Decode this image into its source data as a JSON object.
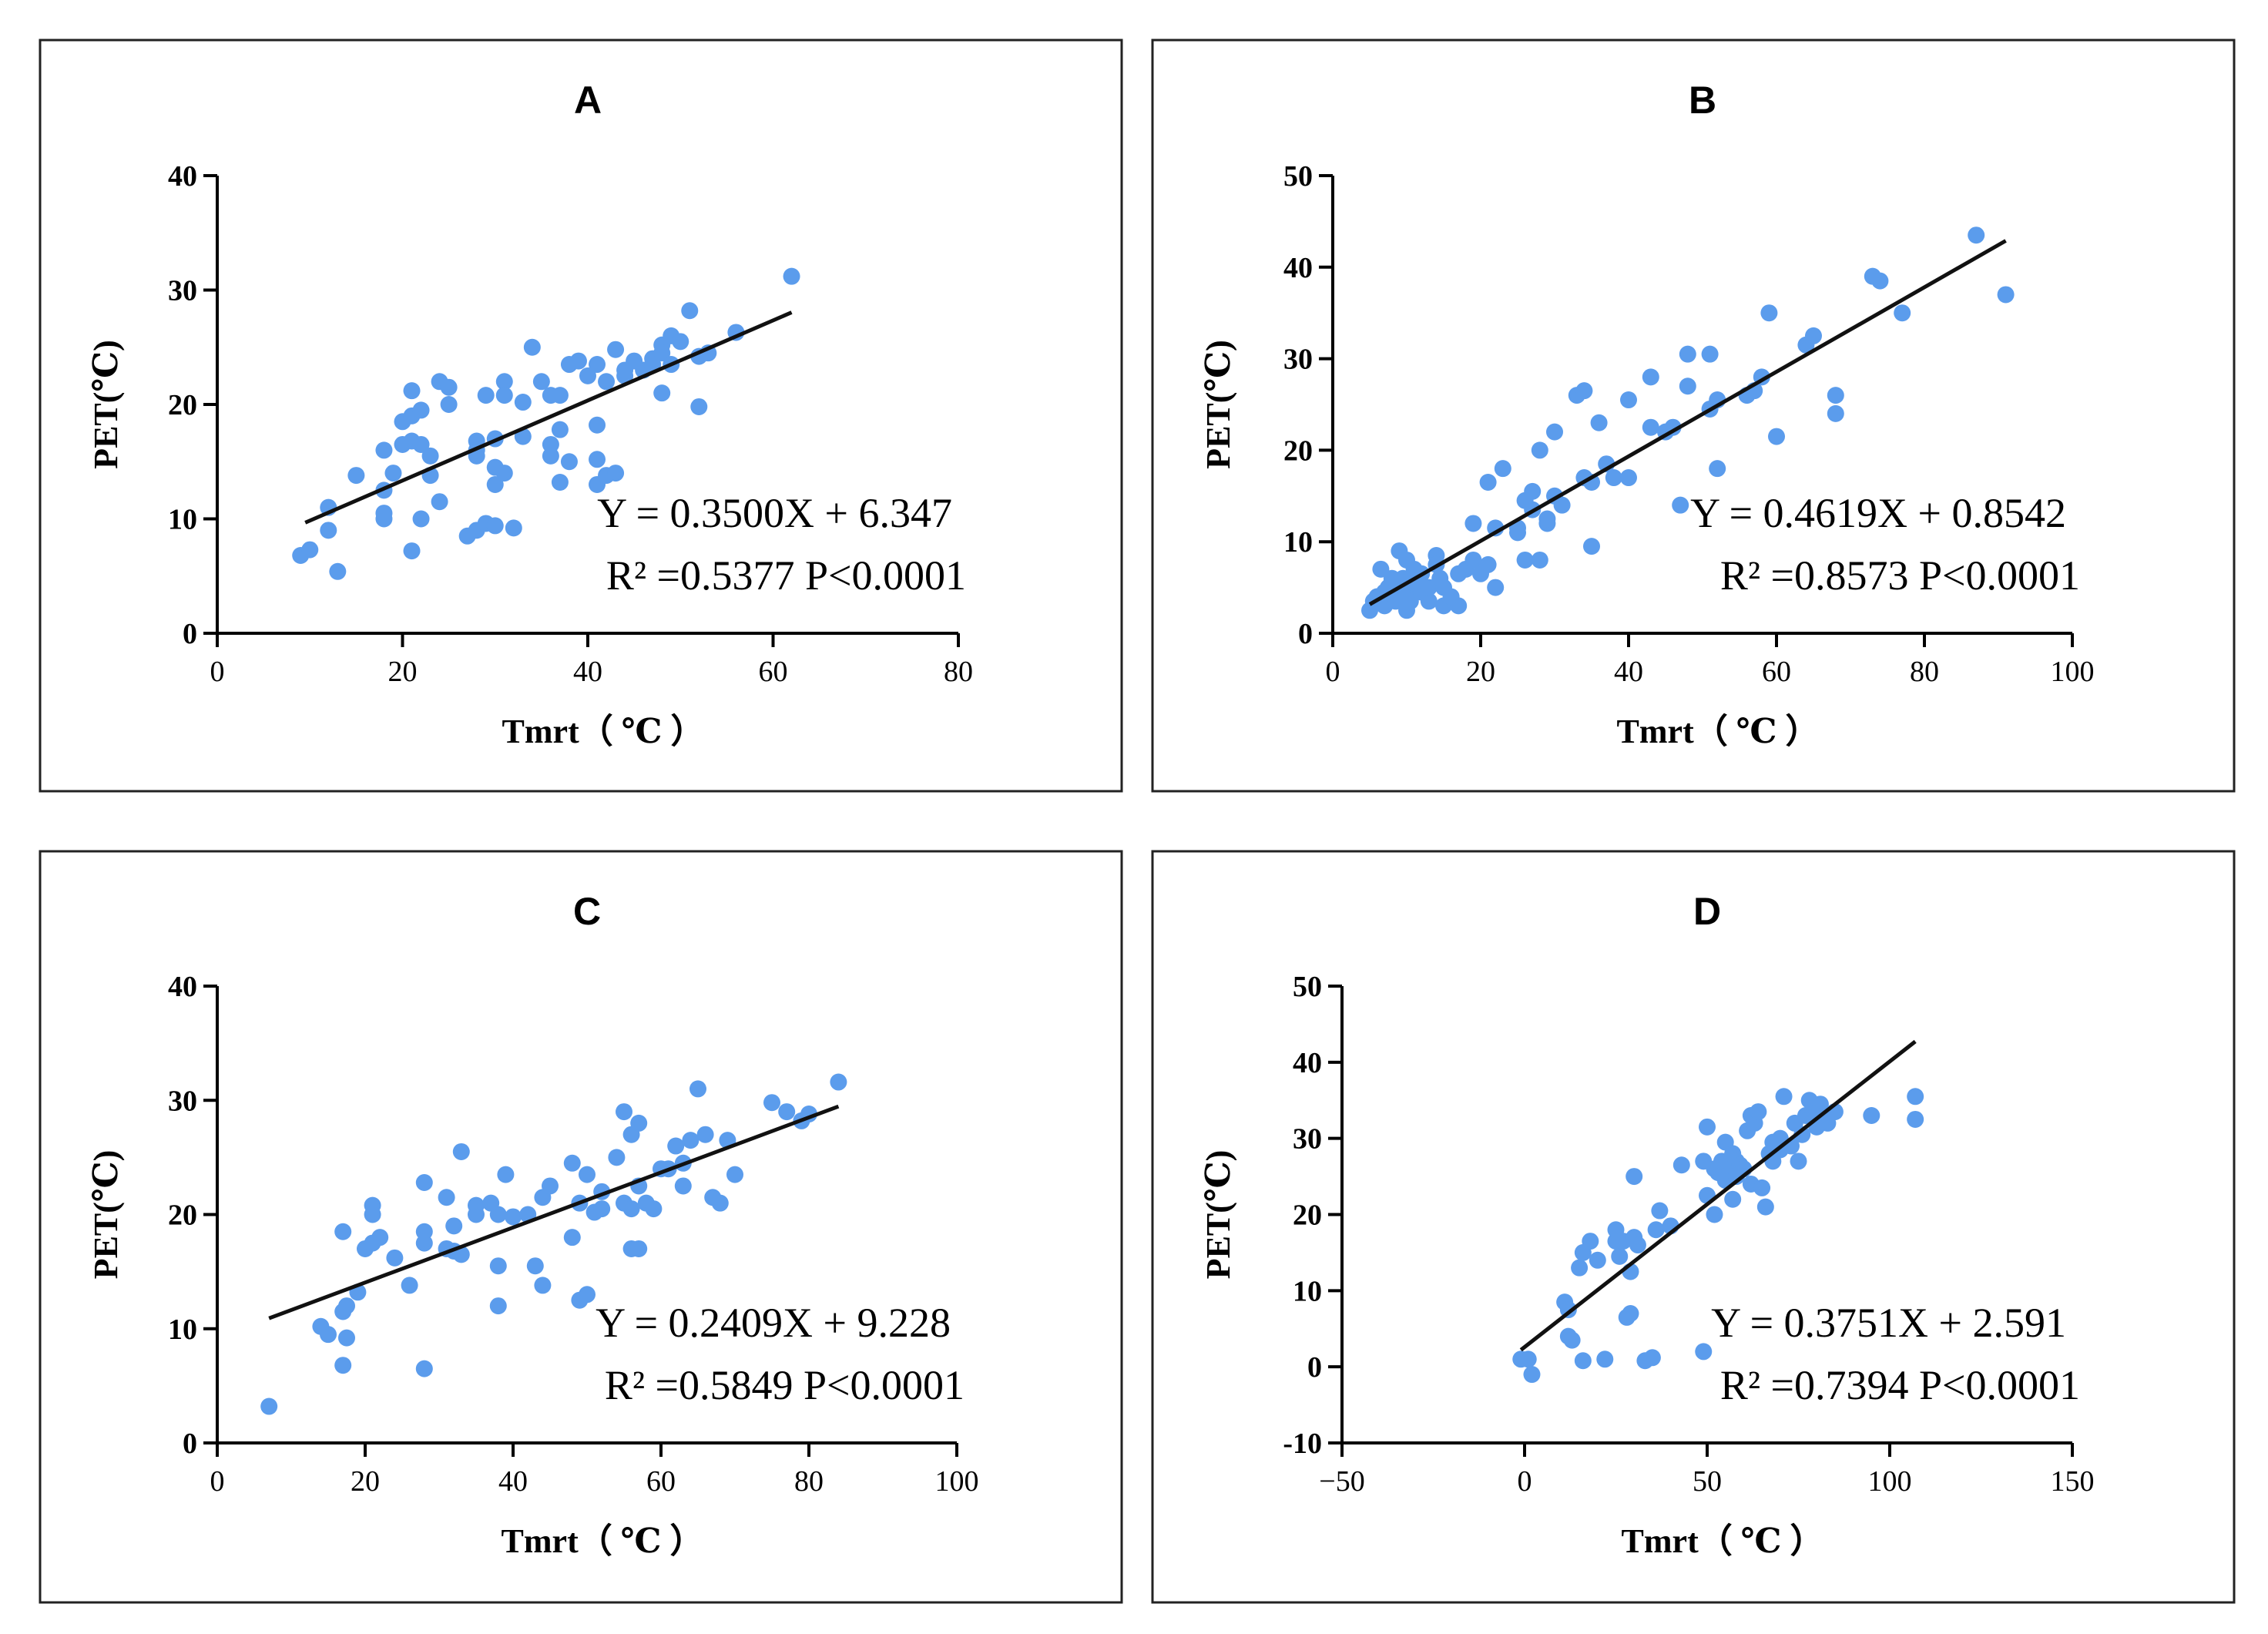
{
  "chart_data": [
    {
      "type": "scatter",
      "title": "A",
      "xlabel": "Tmrt（ ℃ ）",
      "ylabel": "PET(℃)",
      "xlim": [
        0,
        80
      ],
      "ylim": [
        0,
        40
      ],
      "xticks": [
        0,
        20,
        40,
        60,
        80
      ],
      "yticks": [
        0,
        10,
        20,
        30,
        40
      ],
      "point_color": "#5B9CEC",
      "equation": "Y = 0.3500X + 6.347",
      "stats": "R² =0.5377  P<0.0001",
      "fit": {
        "slope": 0.35,
        "intercept": 6.347,
        "x_range": [
          9.5,
          62
        ]
      },
      "points": [
        [
          9,
          6.8
        ],
        [
          10,
          7.3
        ],
        [
          12,
          9.0
        ],
        [
          12,
          11.0
        ],
        [
          13,
          5.4
        ],
        [
          15,
          13.8
        ],
        [
          18,
          10.0
        ],
        [
          18,
          10.5
        ],
        [
          18,
          12.5
        ],
        [
          18,
          16.0
        ],
        [
          19,
          14.0
        ],
        [
          20,
          16.5
        ],
        [
          20,
          18.5
        ],
        [
          21,
          7.2
        ],
        [
          21,
          19.0
        ],
        [
          21,
          16.8
        ],
        [
          21,
          21.2
        ],
        [
          22,
          10.0
        ],
        [
          22,
          19.5
        ],
        [
          22,
          16.5
        ],
        [
          23,
          13.8
        ],
        [
          23,
          15.5
        ],
        [
          24,
          22.0
        ],
        [
          24,
          11.5
        ],
        [
          25,
          21.5
        ],
        [
          25,
          20.0
        ],
        [
          27,
          8.5
        ],
        [
          28,
          16.8
        ],
        [
          28,
          15.5
        ],
        [
          28,
          16.0
        ],
        [
          28,
          9.0
        ],
        [
          29,
          9.6
        ],
        [
          29,
          20.8
        ],
        [
          30,
          9.4
        ],
        [
          30,
          17.0
        ],
        [
          30,
          13.0
        ],
        [
          30,
          14.5
        ],
        [
          31,
          14.0
        ],
        [
          31,
          22.0
        ],
        [
          31,
          20.8
        ],
        [
          32,
          9.2
        ],
        [
          33,
          17.2
        ],
        [
          33,
          20.2
        ],
        [
          34,
          25.0
        ],
        [
          35,
          22.0
        ],
        [
          36,
          16.5
        ],
        [
          36,
          15.5
        ],
        [
          36,
          20.8
        ],
        [
          37,
          13.2
        ],
        [
          37,
          17.8
        ],
        [
          37,
          20.8
        ],
        [
          38,
          23.5
        ],
        [
          38,
          15.0
        ],
        [
          39,
          23.8
        ],
        [
          40,
          22.5
        ],
        [
          41,
          13.0
        ],
        [
          41,
          18.2
        ],
        [
          41,
          15.2
        ],
        [
          41,
          23.5
        ],
        [
          42,
          22.0
        ],
        [
          42,
          13.8
        ],
        [
          43,
          14.0
        ],
        [
          43,
          24.8
        ],
        [
          44,
          22.5
        ],
        [
          44,
          23.0
        ],
        [
          45,
          23.8
        ],
        [
          46,
          23.0
        ],
        [
          47,
          24.0
        ],
        [
          47,
          23.5
        ],
        [
          48,
          25.2
        ],
        [
          48,
          24.5
        ],
        [
          48,
          21.0
        ],
        [
          49,
          26.0
        ],
        [
          49,
          23.5
        ],
        [
          50,
          25.5
        ],
        [
          51,
          28.2
        ],
        [
          52,
          24.2
        ],
        [
          52,
          19.8
        ],
        [
          53,
          24.5
        ],
        [
          56,
          26.3
        ],
        [
          62,
          31.2
        ]
      ]
    },
    {
      "type": "scatter",
      "title": "B",
      "xlabel": "Tmrt（ ℃ ）",
      "ylabel": "PET(℃)",
      "xlim": [
        0,
        100
      ],
      "ylim": [
        0,
        50
      ],
      "xticks": [
        0,
        20,
        40,
        60,
        80,
        100
      ],
      "yticks": [
        0,
        10,
        20,
        30,
        40,
        50
      ],
      "point_color": "#5B9CEC",
      "equation": "Y = 0.4619X + 0.8542",
      "stats": "R² =0.8573  P<0.0001",
      "fit": {
        "slope": 0.4619,
        "intercept": 0.8542,
        "x_range": [
          5,
          91
        ]
      },
      "points": [
        [
          5,
          2.5
        ],
        [
          5.5,
          3.5
        ],
        [
          6,
          4.0
        ],
        [
          6.5,
          7.0
        ],
        [
          7,
          4.5
        ],
        [
          7,
          3.0
        ],
        [
          7.5,
          5.0
        ],
        [
          8,
          4.0
        ],
        [
          8,
          6.0
        ],
        [
          8.5,
          3.5
        ],
        [
          9,
          5.5
        ],
        [
          9,
          9.0
        ],
        [
          9.5,
          6.0
        ],
        [
          10,
          8.0
        ],
        [
          10,
          4.5
        ],
        [
          10,
          2.5
        ],
        [
          10.5,
          3.5
        ],
        [
          11,
          5.5
        ],
        [
          11,
          7.0
        ],
        [
          12,
          4.5
        ],
        [
          12,
          6.5
        ],
        [
          13,
          3.5
        ],
        [
          13,
          5.0
        ],
        [
          14,
          8.5
        ],
        [
          14,
          7.5
        ],
        [
          14.5,
          6.0
        ],
        [
          15,
          3.0
        ],
        [
          15,
          5.0
        ],
        [
          16,
          4.0
        ],
        [
          17,
          3.0
        ],
        [
          17,
          6.5
        ],
        [
          18,
          7.0
        ],
        [
          19,
          8.0
        ],
        [
          19,
          12.0
        ],
        [
          20,
          6.5
        ],
        [
          21,
          7.5
        ],
        [
          21,
          16.5
        ],
        [
          22,
          11.5
        ],
        [
          22,
          5.0
        ],
        [
          23,
          18.0
        ],
        [
          25,
          11.5
        ],
        [
          25,
          11.0
        ],
        [
          26,
          14.5
        ],
        [
          26,
          8.0
        ],
        [
          27,
          15.5
        ],
        [
          27,
          13.5
        ],
        [
          28,
          8.0
        ],
        [
          28,
          20.0
        ],
        [
          29,
          12.0
        ],
        [
          29,
          12.5
        ],
        [
          30,
          22.0
        ],
        [
          30,
          15.0
        ],
        [
          31,
          14.0
        ],
        [
          33,
          26.0
        ],
        [
          34,
          26.5
        ],
        [
          34,
          17.0
        ],
        [
          35,
          9.5
        ],
        [
          35,
          16.5
        ],
        [
          36,
          23.0
        ],
        [
          37,
          18.5
        ],
        [
          38,
          17.0
        ],
        [
          40,
          25.5
        ],
        [
          40,
          17.0
        ],
        [
          43,
          22.5
        ],
        [
          43,
          28.0
        ],
        [
          45,
          22.0
        ],
        [
          46,
          22.5
        ],
        [
          47,
          14.0
        ],
        [
          48,
          27.0
        ],
        [
          48,
          30.5
        ],
        [
          51,
          30.5
        ],
        [
          51,
          24.5
        ],
        [
          52,
          18.0
        ],
        [
          52,
          25.5
        ],
        [
          56,
          26.0
        ],
        [
          57,
          26.5
        ],
        [
          58,
          28.0
        ],
        [
          59,
          35.0
        ],
        [
          60,
          21.5
        ],
        [
          64,
          31.5
        ],
        [
          65,
          32.5
        ],
        [
          68,
          26.0
        ],
        [
          68,
          24.0
        ],
        [
          73,
          39.0
        ],
        [
          74,
          38.5
        ],
        [
          77,
          35.0
        ],
        [
          87,
          43.5
        ],
        [
          91,
          37.0
        ]
      ]
    },
    {
      "type": "scatter",
      "title": "C",
      "xlabel": "Tmrt（ ℃ ）",
      "ylabel": "PET(℃)",
      "xlim": [
        0,
        100
      ],
      "ylim": [
        0,
        40
      ],
      "xticks": [
        0,
        20,
        40,
        60,
        80,
        100
      ],
      "yticks": [
        0,
        10,
        20,
        30,
        40
      ],
      "point_color": "#5B9CEC",
      "equation": "Y = 0.2409X + 9.228",
      "stats": "R² =0.5849  P<0.0001",
      "fit": {
        "slope": 0.2409,
        "intercept": 9.228,
        "x_range": [
          7,
          84
        ]
      },
      "points": [
        [
          7,
          3.2
        ],
        [
          14,
          10.2
        ],
        [
          15,
          9.5
        ],
        [
          17,
          18.5
        ],
        [
          17,
          11.5
        ],
        [
          17,
          6.8
        ],
        [
          17.5,
          9.2
        ],
        [
          17.5,
          12.0
        ],
        [
          19,
          13.2
        ],
        [
          20,
          17.0
        ],
        [
          21,
          20.8
        ],
        [
          21,
          20.0
        ],
        [
          21,
          17.5
        ],
        [
          22,
          18.0
        ],
        [
          24,
          16.2
        ],
        [
          26,
          13.8
        ],
        [
          28,
          22.8
        ],
        [
          28,
          17.5
        ],
        [
          28,
          18.5
        ],
        [
          28,
          6.5
        ],
        [
          31,
          21.5
        ],
        [
          31,
          17.0
        ],
        [
          32,
          19.0
        ],
        [
          32,
          16.8
        ],
        [
          33,
          16.5
        ],
        [
          33,
          25.5
        ],
        [
          35,
          20.0
        ],
        [
          35,
          20.8
        ],
        [
          37,
          21.0
        ],
        [
          38,
          20.0
        ],
        [
          38,
          15.5
        ],
        [
          38,
          12.0
        ],
        [
          39,
          23.5
        ],
        [
          40,
          19.8
        ],
        [
          42,
          20.0
        ],
        [
          43,
          15.5
        ],
        [
          44,
          21.5
        ],
        [
          44,
          13.8
        ],
        [
          45,
          22.5
        ],
        [
          48,
          24.5
        ],
        [
          48,
          18.0
        ],
        [
          49,
          21.0
        ],
        [
          49,
          12.5
        ],
        [
          50,
          13.0
        ],
        [
          50,
          23.5
        ],
        [
          51,
          20.2
        ],
        [
          52,
          22.0
        ],
        [
          52,
          20.5
        ],
        [
          54,
          25.0
        ],
        [
          55,
          21.0
        ],
        [
          55,
          29.0
        ],
        [
          56,
          27.0
        ],
        [
          56,
          17.0
        ],
        [
          56,
          20.5
        ],
        [
          57,
          17.0
        ],
        [
          57,
          22.5
        ],
        [
          57,
          28.0
        ],
        [
          58,
          21.0
        ],
        [
          59,
          20.5
        ],
        [
          60,
          24.0
        ],
        [
          61,
          24.0
        ],
        [
          62,
          26.0
        ],
        [
          63,
          22.5
        ],
        [
          63,
          24.5
        ],
        [
          64,
          26.5
        ],
        [
          65,
          31.0
        ],
        [
          66,
          27.0
        ],
        [
          67,
          21.5
        ],
        [
          68,
          21.0
        ],
        [
          69,
          26.5
        ],
        [
          70,
          23.5
        ],
        [
          75,
          29.8
        ],
        [
          77,
          29.0
        ],
        [
          79,
          28.2
        ],
        [
          80,
          28.8
        ],
        [
          84,
          31.6
        ]
      ]
    },
    {
      "type": "scatter",
      "title": "D",
      "xlabel": "Tmrt（ ℃ ）",
      "ylabel": "PET(℃)",
      "xlim": [
        -50,
        150
      ],
      "ylim": [
        -10,
        50
      ],
      "xticks": [
        -50,
        0,
        50,
        100,
        150
      ],
      "xtick_labels": [
        "−50",
        "0",
        "50",
        "100",
        "150"
      ],
      "yticks": [
        -10,
        0,
        10,
        20,
        30,
        40,
        50
      ],
      "point_color": "#5B9CEC",
      "equation": "Y = 0.3751X + 2.591",
      "stats": "R² =0.7394  P<0.0001",
      "fit": {
        "slope": 0.3751,
        "intercept": 2.591,
        "x_range": [
          -1,
          107
        ]
      },
      "points": [
        [
          -1,
          1.0
        ],
        [
          1,
          1.0
        ],
        [
          2,
          -1.0
        ],
        [
          11,
          8.5
        ],
        [
          12,
          7.5
        ],
        [
          12,
          4.0
        ],
        [
          13,
          3.5
        ],
        [
          15,
          13.0
        ],
        [
          16,
          15.0
        ],
        [
          16,
          0.8
        ],
        [
          18,
          16.5
        ],
        [
          20,
          14.0
        ],
        [
          22,
          1.0
        ],
        [
          25,
          18.0
        ],
        [
          25,
          16.5
        ],
        [
          26,
          14.5
        ],
        [
          27,
          16.5
        ],
        [
          28,
          6.5
        ],
        [
          29,
          7.0
        ],
        [
          29,
          12.5
        ],
        [
          30,
          17.0
        ],
        [
          30,
          25.0
        ],
        [
          31,
          16.0
        ],
        [
          33,
          0.8
        ],
        [
          35,
          1.2
        ],
        [
          36,
          18.0
        ],
        [
          37,
          20.5
        ],
        [
          40,
          18.5
        ],
        [
          43,
          26.5
        ],
        [
          49,
          2.0
        ],
        [
          49,
          27.0
        ],
        [
          50,
          22.5
        ],
        [
          50,
          31.5
        ],
        [
          52,
          20.0
        ],
        [
          52,
          26.0
        ],
        [
          53,
          25.5
        ],
        [
          54,
          27.0
        ],
        [
          55,
          29.5
        ],
        [
          55,
          24.5
        ],
        [
          56,
          26.5
        ],
        [
          57,
          22.0
        ],
        [
          57,
          28.0
        ],
        [
          58,
          25.0
        ],
        [
          58,
          27.0
        ],
        [
          59,
          26.5
        ],
        [
          60,
          26.0
        ],
        [
          61,
          31.0
        ],
        [
          62,
          24.0
        ],
        [
          62,
          33.0
        ],
        [
          63,
          32.0
        ],
        [
          64,
          33.5
        ],
        [
          65,
          23.5
        ],
        [
          66,
          21.0
        ],
        [
          67,
          28.0
        ],
        [
          68,
          27.0
        ],
        [
          68,
          29.5
        ],
        [
          70,
          30.0
        ],
        [
          70,
          28.5
        ],
        [
          71,
          35.5
        ],
        [
          73,
          29.0
        ],
        [
          74,
          32.0
        ],
        [
          75,
          27.0
        ],
        [
          76,
          30.5
        ],
        [
          77,
          33.0
        ],
        [
          78,
          35.0
        ],
        [
          79,
          33.5
        ],
        [
          80,
          31.5
        ],
        [
          81,
          34.5
        ],
        [
          82,
          33.0
        ],
        [
          83,
          32.0
        ],
        [
          85,
          33.5
        ],
        [
          95,
          33.0
        ],
        [
          107,
          35.5
        ],
        [
          107,
          32.5
        ]
      ]
    }
  ]
}
